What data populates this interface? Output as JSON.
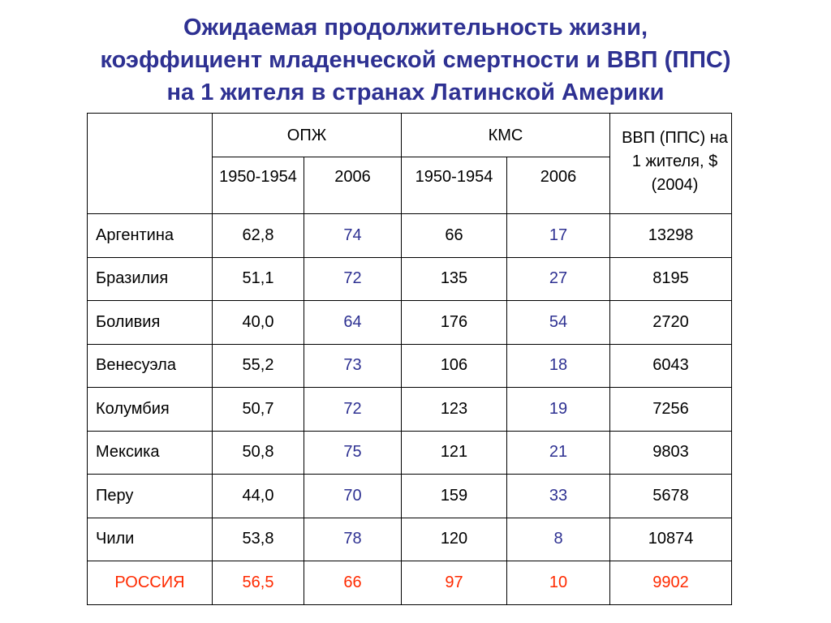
{
  "title_lines": [
    "Ожидаемая продолжительность жизни,",
    "коэффициент младенческой смертности и ВВП (ППС)",
    "на 1 жителя в странах Латинской Америки"
  ],
  "table": {
    "group_headers": {
      "opzh": "ОПЖ",
      "kms": "КМС",
      "gdp": "ВВП (ППС) на 1 жителя, $ (2004)"
    },
    "sub_headers": {
      "period1": "1950-1954",
      "period2": "2006"
    },
    "rows": [
      {
        "country": "Аргентина",
        "opzh_1950": "62,8",
        "opzh_2006": "74",
        "kms_1950": "66",
        "kms_2006": "17",
        "gdp": "13298"
      },
      {
        "country": "Бразилия",
        "opzh_1950": "51,1",
        "opzh_2006": "72",
        "kms_1950": "135",
        "kms_2006": "27",
        "gdp": "8195"
      },
      {
        "country": "Боливия",
        "opzh_1950": "40,0",
        "opzh_2006": "64",
        "kms_1950": "176",
        "kms_2006": "54",
        "gdp": "2720"
      },
      {
        "country": "Венесуэла",
        "opzh_1950": "55,2",
        "opzh_2006": "73",
        "kms_1950": "106",
        "kms_2006": "18",
        "gdp": "6043"
      },
      {
        "country": "Колумбия",
        "opzh_1950": "50,7",
        "opzh_2006": "72",
        "kms_1950": "123",
        "kms_2006": "19",
        "gdp": "7256"
      },
      {
        "country": "Мексика",
        "opzh_1950": "50,8",
        "opzh_2006": "75",
        "kms_1950": "121",
        "kms_2006": "21",
        "gdp": "9803"
      },
      {
        "country": "Перу",
        "opzh_1950": "44,0",
        "opzh_2006": "70",
        "kms_1950": "159",
        "kms_2006": "33",
        "gdp": "5678"
      },
      {
        "country": "Чили",
        "opzh_1950": "53,8",
        "opzh_2006": "78",
        "kms_1950": "120",
        "kms_2006": "8",
        "gdp": "10874"
      },
      {
        "country": "РОССИЯ",
        "opzh_1950": "56,5",
        "opzh_2006": "66",
        "kms_1950": "97",
        "kms_2006": "10",
        "gdp": "9902"
      }
    ],
    "colors": {
      "title": "#2e3192",
      "blue_values": "#2e3192",
      "russia_highlight": "#ff2a00"
    }
  }
}
